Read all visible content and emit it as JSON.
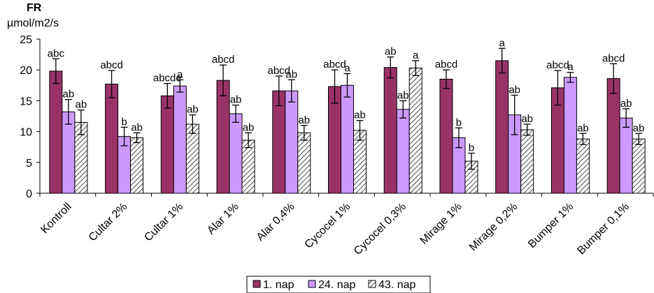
{
  "chart_data": {
    "type": "bar",
    "title": "FR",
    "ylabel": "µmol/m2/s",
    "xlabel": "",
    "ylim": [
      0,
      25
    ],
    "yticks": [
      "0",
      "5",
      "10",
      "15",
      "20",
      "25"
    ],
    "grid": false,
    "legend_position": "bottom",
    "categories": [
      "Kontroll",
      "Cultar 2%",
      "Cultar 1%",
      "Alar 1%",
      "Alar 0,4%",
      "Cycocel 1%",
      "Cycocel 0,3%",
      "Mirage 1%",
      "Mirage 0,2%",
      "Bumper 1%",
      "Bumper 0,1%"
    ],
    "series": [
      {
        "name": "1. nap",
        "color": "#993366",
        "pattern": "solid",
        "values": [
          19.8,
          17.7,
          15.8,
          18.3,
          16.6,
          17.3,
          20.4,
          18.5,
          21.5,
          17.1,
          18.6
        ],
        "errors": [
          2.0,
          2.2,
          2.0,
          2.5,
          2.4,
          2.7,
          1.7,
          1.5,
          2.0,
          2.8,
          2.4
        ],
        "labels": [
          "abc",
          "abcd",
          "abcde",
          "abcd",
          "abcd",
          "abcd",
          "ab",
          "abcd",
          "a",
          "abcd",
          "abcd"
        ]
      },
      {
        "name": "24. nap",
        "color": "#cc99ff",
        "pattern": "solid",
        "values": [
          13.2,
          9.2,
          17.4,
          12.9,
          16.6,
          17.5,
          13.6,
          9.0,
          12.7,
          18.8,
          12.2
        ],
        "errors": [
          2.0,
          1.5,
          1.0,
          1.4,
          1.8,
          1.9,
          1.4,
          1.6,
          3.2,
          0.8,
          1.5
        ],
        "labels": [
          "ab",
          "b",
          "a",
          "ab",
          "ab",
          "a",
          "ab",
          "b",
          "ab",
          "a",
          "ab"
        ]
      },
      {
        "name": "43. nap",
        "color": "#ffffff",
        "pattern": "diagonal-hatch",
        "values": [
          11.5,
          9.0,
          11.2,
          8.6,
          9.8,
          10.2,
          20.3,
          5.2,
          10.3,
          8.8,
          8.8
        ],
        "errors": [
          2.0,
          0.8,
          1.5,
          1.2,
          1.2,
          1.6,
          1.2,
          1.3,
          0.9,
          0.9,
          0.9
        ],
        "labels": [
          "ab",
          "ab",
          "ab",
          "ab",
          "ab",
          "ab",
          "a",
          "b",
          "ab",
          "ab",
          "ab"
        ]
      }
    ]
  }
}
